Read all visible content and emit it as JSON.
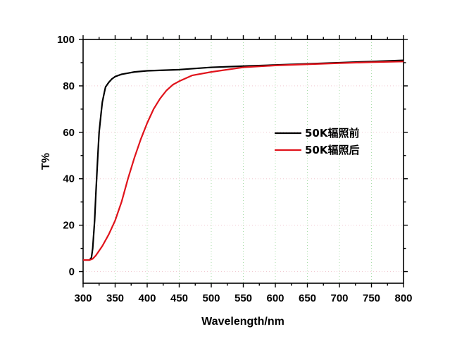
{
  "chart_data": {
    "type": "line",
    "title": "",
    "xlabel": "Wavelength/nm",
    "ylabel": "T%",
    "xlim": [
      300,
      800
    ],
    "ylim": [
      -5,
      100
    ],
    "x_ticks": [
      300,
      350,
      400,
      450,
      500,
      550,
      600,
      650,
      700,
      750,
      800
    ],
    "y_ticks": [
      0,
      20,
      40,
      60,
      80,
      100
    ],
    "grid": "dotted green vertical lines at major x ticks, faint horizontal lines",
    "legend_position": "center-right",
    "series": [
      {
        "name": "50K辐照前",
        "color": "#000000",
        "x": [
          300,
          305,
          310,
          313,
          315,
          318,
          320,
          323,
          325,
          328,
          330,
          333,
          335,
          340,
          345,
          350,
          355,
          360,
          370,
          380,
          400,
          450,
          500,
          550,
          600,
          650,
          700,
          750,
          800
        ],
        "y": [
          5,
          5,
          5,
          6,
          10,
          22,
          34,
          50,
          60,
          68,
          73,
          77,
          79.5,
          81.5,
          83,
          84,
          84.5,
          85,
          85.5,
          86,
          86.5,
          87,
          88,
          88.5,
          89,
          89.5,
          90,
          90.5,
          91
        ]
      },
      {
        "name": "50K辐照后",
        "color": "#e0131b",
        "x": [
          300,
          305,
          310,
          315,
          320,
          325,
          330,
          340,
          350,
          360,
          370,
          380,
          390,
          400,
          410,
          420,
          430,
          440,
          450,
          470,
          500,
          550,
          600,
          650,
          700,
          750,
          800
        ],
        "y": [
          5,
          5,
          5,
          5.5,
          7,
          9,
          11,
          16,
          22,
          30,
          40,
          49,
          57,
          64,
          70,
          74.5,
          78,
          80.5,
          82,
          84.5,
          86,
          88,
          88.8,
          89.3,
          89.8,
          90.2,
          90.5
        ]
      }
    ]
  }
}
